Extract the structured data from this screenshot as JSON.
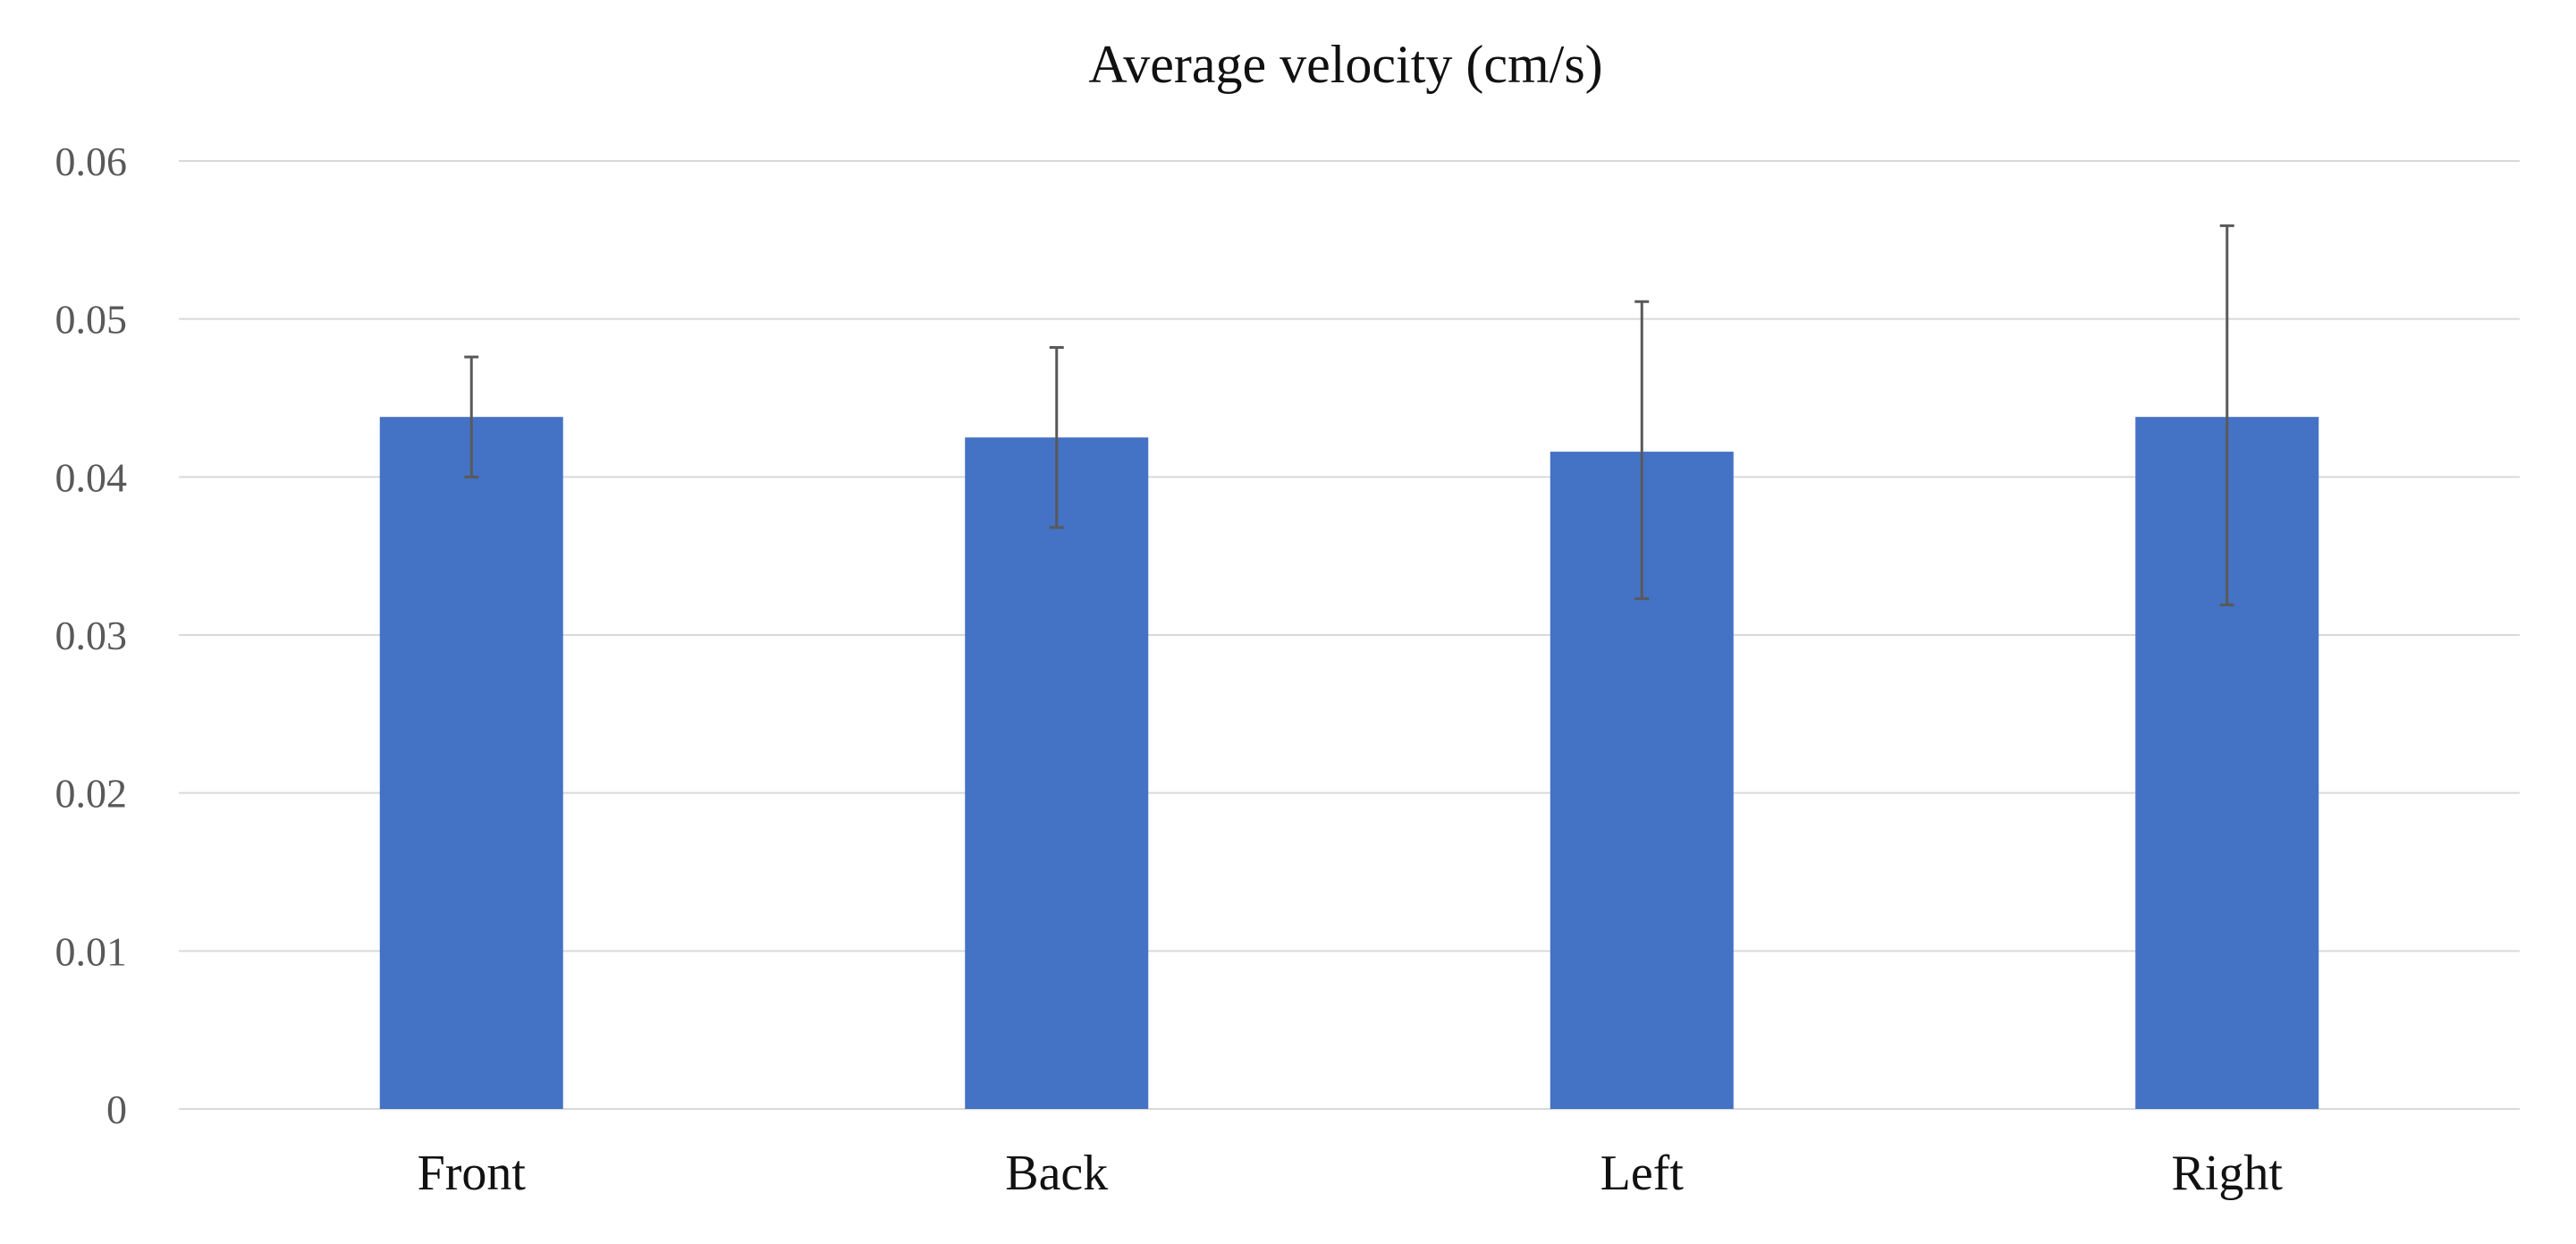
{
  "chart_data": {
    "type": "bar",
    "title": "Average velocity (cm/s)",
    "xlabel": "",
    "ylabel": "",
    "categories": [
      "Front",
      "Back",
      "Left",
      "Right"
    ],
    "values": [
      0.0438,
      0.0425,
      0.0416,
      0.0438
    ],
    "error_low": [
      0.04,
      0.0368,
      0.0323,
      0.0319
    ],
    "error_high": [
      0.0476,
      0.0482,
      0.0511,
      0.0559
    ],
    "ylim": [
      0,
      0.06
    ],
    "yticks": [
      0,
      0.01,
      0.02,
      0.03,
      0.04,
      0.05,
      0.06
    ],
    "ytick_labels": [
      "0",
      "0.01",
      "0.02",
      "0.03",
      "0.04",
      "0.05",
      "0.06"
    ],
    "grid": true,
    "legend": "none",
    "colors": {
      "bar": "#4472C4",
      "error_bar": "#595959",
      "grid": "#D9D9D9",
      "title": "#111111",
      "tick_text": "#595959"
    }
  }
}
